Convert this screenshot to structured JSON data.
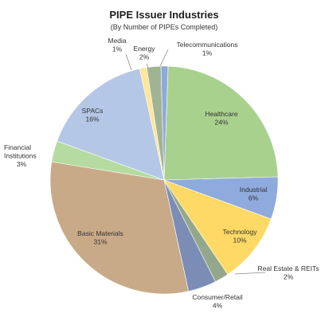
{
  "chart_data": {
    "type": "pie",
    "title": "PIPE Issuer Industries",
    "subtitle": "(By Number of PIPEs Completed)",
    "slices": [
      {
        "name": "Healthcare",
        "value": 24,
        "label": "24%",
        "color": "#a9d18e"
      },
      {
        "name": "Industrial",
        "value": 6,
        "label": "6%",
        "color": "#8faadc"
      },
      {
        "name": "Technology",
        "value": 10,
        "label": "10%",
        "color": "#ffd966"
      },
      {
        "name": "Real Estate & REITs",
        "value": 2,
        "label": "2%",
        "color": "#93a88a"
      },
      {
        "name": "Consumer/Retail",
        "value": 4,
        "label": "4%",
        "color": "#7c8db5"
      },
      {
        "name": "Basic Materials",
        "value": 31,
        "label": "31%",
        "color": "#c9aa88"
      },
      {
        "name": "Financial Institutions",
        "value": 3,
        "label": "3%",
        "color": "#b5dba1"
      },
      {
        "name": "SPACs",
        "value": 16,
        "label": "16%",
        "color": "#b4c7e7"
      },
      {
        "name": "Media",
        "value": 1,
        "label": "1%",
        "color": "#ffe699"
      },
      {
        "name": "Energy",
        "value": 2,
        "label": "2%",
        "color": "#a0b494"
      },
      {
        "name": "Telecommunications",
        "value": 1,
        "label": "1%",
        "color": "#8ea9db"
      }
    ]
  }
}
